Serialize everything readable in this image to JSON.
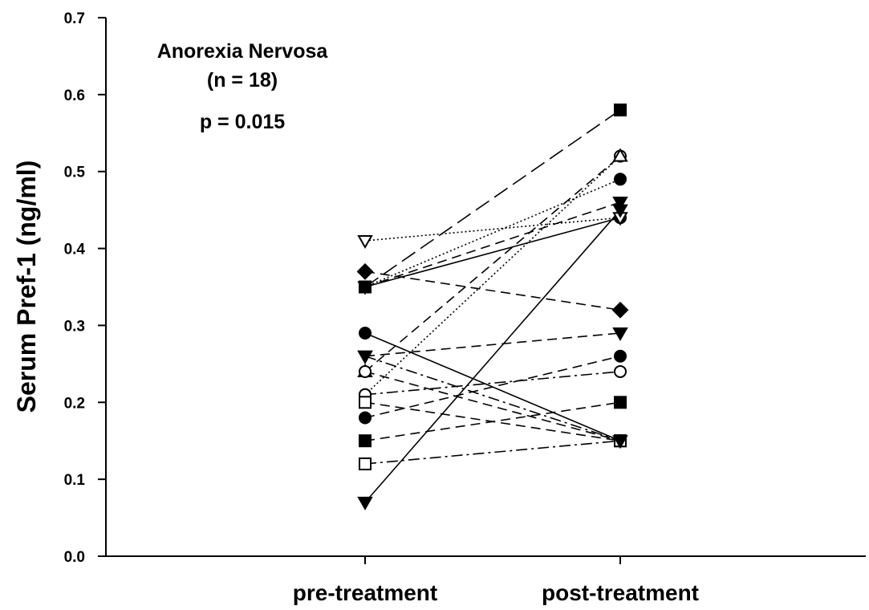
{
  "chart_data": {
    "type": "line",
    "title": "",
    "xlabel": "",
    "ylabel": "Serum Pref-1 (ng/ml)",
    "categories": [
      "pre-treatment",
      "post-treatment"
    ],
    "ylim": [
      0,
      0.7
    ],
    "yticks": [
      "0.0",
      "0.1",
      "0.2",
      "0.3",
      "0.4",
      "0.5",
      "0.6",
      "0.7"
    ],
    "grid": false,
    "annotations": [
      "Anorexia Nervosa",
      "(n = 18)",
      "p = 0.015"
    ],
    "series": [
      {
        "values": [
          0.35,
          0.58
        ],
        "marker": "square-filled",
        "line": "long-dash"
      },
      {
        "values": [
          0.21,
          0.52
        ],
        "marker": "circle-open",
        "line": "dotted"
      },
      {
        "values": [
          0.24,
          0.52
        ],
        "marker": "triangle-up-open",
        "line": "dash"
      },
      {
        "values": [
          0.35,
          0.49
        ],
        "marker": "circle-filled",
        "line": "dotted"
      },
      {
        "values": [
          0.35,
          0.46
        ],
        "marker": "triangle-down-filled",
        "line": "dash"
      },
      {
        "values": [
          0.35,
          0.44
        ],
        "marker": "circle-filled",
        "line": "solid"
      },
      {
        "values": [
          0.41,
          0.44
        ],
        "marker": "triangle-down-open",
        "line": "dotted"
      },
      {
        "values": [
          0.07,
          0.45
        ],
        "marker": "triangle-down-filled",
        "line": "solid"
      },
      {
        "values": [
          0.37,
          0.32
        ],
        "marker": "diamond-filled",
        "line": "dash"
      },
      {
        "values": [
          0.26,
          0.29
        ],
        "marker": "triangle-down-filled",
        "line": "dash"
      },
      {
        "values": [
          0.18,
          0.26
        ],
        "marker": "circle-filled",
        "line": "dash"
      },
      {
        "values": [
          0.21,
          0.24
        ],
        "marker": "circle-open",
        "line": "dash-dot"
      },
      {
        "values": [
          0.15,
          0.2
        ],
        "marker": "square-filled",
        "line": "dash"
      },
      {
        "values": [
          0.29,
          0.15
        ],
        "marker": "circle-filled",
        "line": "solid"
      },
      {
        "values": [
          0.24,
          0.15
        ],
        "marker": "circle-open",
        "line": "dash"
      },
      {
        "values": [
          0.2,
          0.15
        ],
        "marker": "square-open",
        "line": "dash"
      },
      {
        "values": [
          0.12,
          0.15
        ],
        "marker": "square-open",
        "line": "dash-dot"
      },
      {
        "values": [
          0.26,
          0.15
        ],
        "marker": "triangle-down-filled",
        "line": "dash-dot"
      }
    ]
  }
}
